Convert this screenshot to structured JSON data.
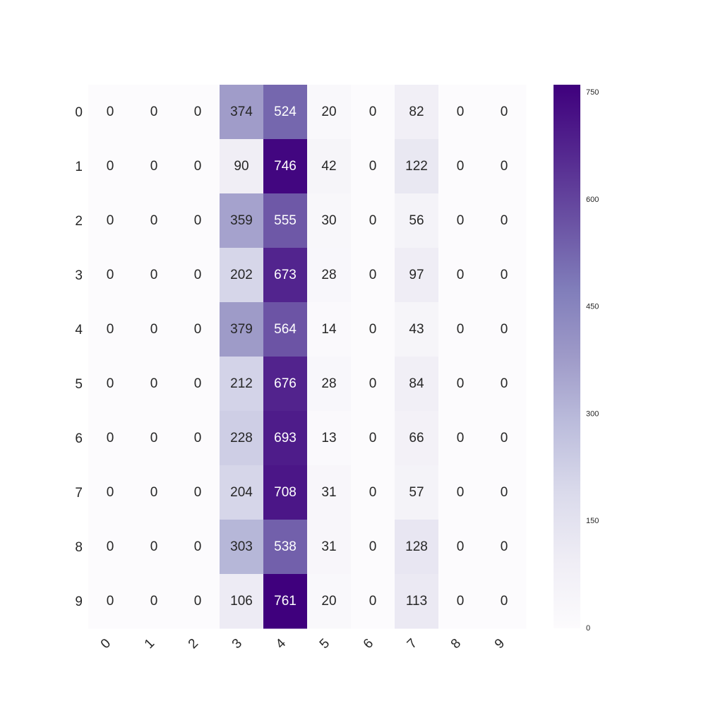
{
  "chart_data": {
    "type": "heatmap",
    "title": "",
    "xlabel": "",
    "ylabel": "",
    "x_tick_labels": [
      "0",
      "1",
      "2",
      "3",
      "4",
      "5",
      "6",
      "7",
      "8",
      "9"
    ],
    "y_tick_labels": [
      "0",
      "1",
      "2",
      "3",
      "4",
      "5",
      "6",
      "7",
      "8",
      "9"
    ],
    "values": [
      [
        0,
        0,
        0,
        374,
        524,
        20,
        0,
        82,
        0,
        0
      ],
      [
        0,
        0,
        0,
        90,
        746,
        42,
        0,
        122,
        0,
        0
      ],
      [
        0,
        0,
        0,
        359,
        555,
        30,
        0,
        56,
        0,
        0
      ],
      [
        0,
        0,
        0,
        202,
        673,
        28,
        0,
        97,
        0,
        0
      ],
      [
        0,
        0,
        0,
        379,
        564,
        14,
        0,
        43,
        0,
        0
      ],
      [
        0,
        0,
        0,
        212,
        676,
        28,
        0,
        84,
        0,
        0
      ],
      [
        0,
        0,
        0,
        228,
        693,
        13,
        0,
        66,
        0,
        0
      ],
      [
        0,
        0,
        0,
        204,
        708,
        31,
        0,
        57,
        0,
        0
      ],
      [
        0,
        0,
        0,
        303,
        538,
        31,
        0,
        128,
        0,
        0
      ],
      [
        0,
        0,
        0,
        106,
        761,
        20,
        0,
        113,
        0,
        0
      ]
    ],
    "annotate": true,
    "colormap": "Purples",
    "colormap_stops": [
      "#fcfbfd",
      "#efedf5",
      "#dadaeb",
      "#bcbddc",
      "#9e9ac8",
      "#807dba",
      "#6a51a3",
      "#54278f",
      "#3f007d"
    ],
    "value_range": [
      0,
      761
    ],
    "colorbar": {
      "ticks": [
        0,
        150,
        300,
        450,
        600,
        750
      ],
      "tick_labels": [
        "0",
        "150",
        "300",
        "450",
        "600",
        "750"
      ],
      "placement": "right"
    },
    "x_tick_rotation": 45,
    "grid": false
  }
}
